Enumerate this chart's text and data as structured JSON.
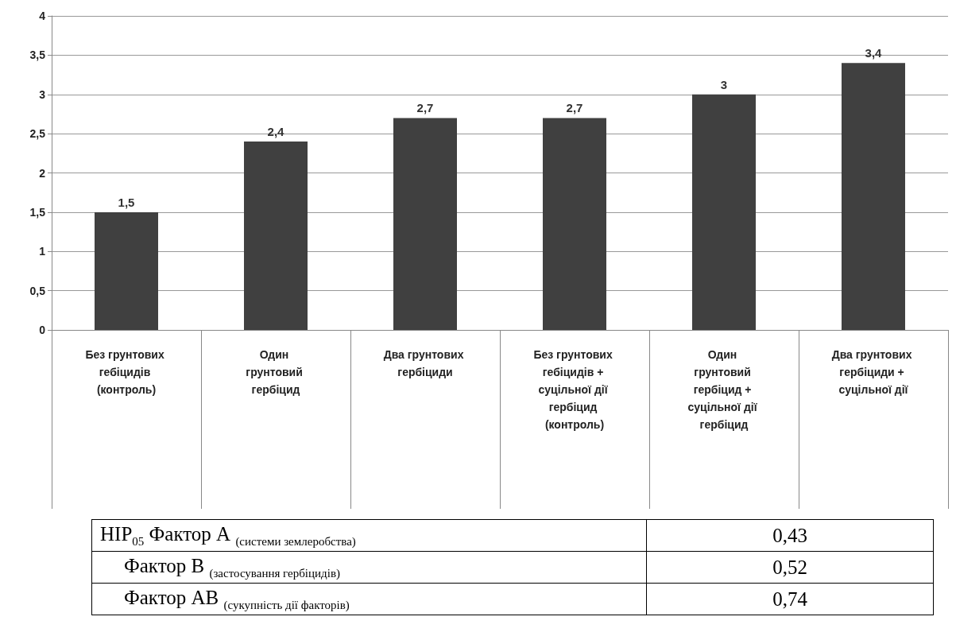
{
  "chart_data": {
    "type": "bar",
    "categories": [
      "Без грунтових гебіцидів (контроль)",
      "Один грунтовий гербіцид",
      "Два грунтових гербіциди",
      "Без грунтових гебіцидів + суцільної дії гербіцид (контроль)",
      "Один грунтовий гербіцид + суцільної дії гербіцид",
      "Два грунтових гербіциди + суцільної дії"
    ],
    "values": [
      1.5,
      2.4,
      2.7,
      2.7,
      3,
      3.4
    ],
    "value_labels": [
      "1,5",
      "2,4",
      "2,7",
      "2,7",
      "3",
      "3,4"
    ],
    "color": "#404040",
    "ylim": [
      0,
      4
    ],
    "yticks": [
      0,
      {
        "value": 0.5,
        "label": "0,5"
      },
      1,
      {
        "value": 1.5,
        "label": "1,5"
      },
      2,
      {
        "value": 2.5,
        "label": "2,5"
      },
      3,
      {
        "value": 3.5,
        "label": "3,5"
      },
      4
    ],
    "grid": "y",
    "annotations": [
      "НІР$_{05}$ Фактор А $_{(системи землеробства)}$",
      "0,43",
      "Фактор В $_{(застосування гербіцидів)}$",
      "0,52",
      "Фактор АВ $_{(сукупність дії факторів)}$",
      "0,74"
    ]
  }
}
